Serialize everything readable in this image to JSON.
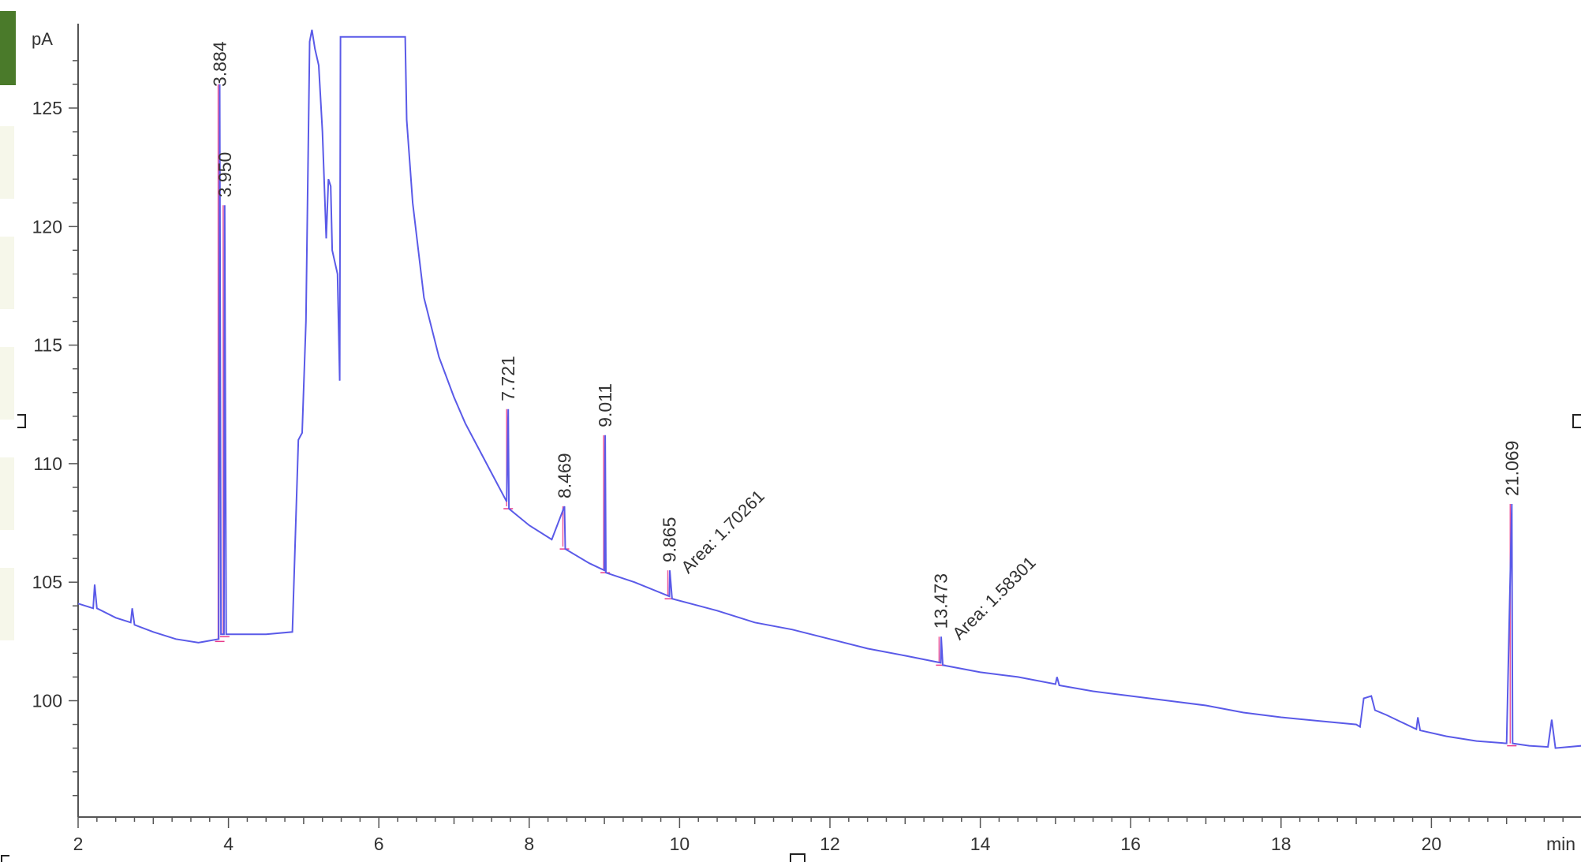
{
  "chart_data": {
    "type": "line",
    "xlabel": "min",
    "ylabel": "pA",
    "xlim": [
      2,
      22
    ],
    "ylim": [
      95,
      127.5
    ],
    "x_ticks": [
      2,
      4,
      6,
      8,
      10,
      12,
      14,
      16,
      18,
      20
    ],
    "y_ticks": [
      100,
      105,
      110,
      115,
      120,
      125
    ],
    "series_color": "#5a5ae8",
    "integration_color": "#e83a8a",
    "series": [
      {
        "points": [
          [
            2.0,
            104.1
          ],
          [
            2.2,
            103.9
          ],
          [
            2.22,
            104.9
          ],
          [
            2.25,
            103.9
          ],
          [
            2.5,
            103.5
          ],
          [
            2.7,
            103.3
          ],
          [
            2.72,
            103.9
          ],
          [
            2.75,
            103.2
          ],
          [
            3.0,
            102.9
          ],
          [
            3.3,
            102.6
          ],
          [
            3.6,
            102.45
          ],
          [
            3.87,
            102.6
          ],
          [
            3.884,
            126.0
          ],
          [
            3.9,
            102.8
          ],
          [
            3.94,
            102.8
          ],
          [
            3.95,
            120.9
          ],
          [
            3.97,
            102.8
          ],
          [
            4.2,
            102.8
          ],
          [
            4.5,
            102.8
          ],
          [
            4.85,
            102.9
          ],
          [
            4.93,
            111.0
          ],
          [
            4.98,
            111.3
          ],
          [
            5.03,
            116.0
          ],
          [
            5.08,
            127.8
          ],
          [
            5.11,
            128.3
          ],
          [
            5.15,
            127.5
          ],
          [
            5.2,
            126.8
          ],
          [
            5.25,
            124.0
          ],
          [
            5.3,
            119.5
          ],
          [
            5.33,
            122.0
          ],
          [
            5.36,
            121.7
          ],
          [
            5.38,
            119.0
          ],
          [
            5.45,
            118.0
          ],
          [
            5.48,
            113.5
          ],
          [
            5.49,
            128.0
          ],
          [
            6.35,
            128.0
          ],
          [
            6.37,
            124.5
          ],
          [
            6.45,
            121.0
          ],
          [
            6.6,
            117.0
          ],
          [
            6.8,
            114.5
          ],
          [
            7.0,
            112.8
          ],
          [
            7.15,
            111.7
          ],
          [
            7.3,
            110.8
          ],
          [
            7.5,
            109.6
          ],
          [
            7.7,
            108.4
          ],
          [
            7.721,
            112.3
          ],
          [
            7.73,
            108.1
          ],
          [
            8.0,
            107.4
          ],
          [
            8.3,
            106.8
          ],
          [
            8.469,
            108.2
          ],
          [
            8.48,
            106.4
          ],
          [
            8.8,
            105.8
          ],
          [
            9.0,
            105.5
          ],
          [
            9.011,
            111.2
          ],
          [
            9.02,
            105.4
          ],
          [
            9.4,
            105.0
          ],
          [
            9.865,
            104.4
          ],
          [
            9.87,
            105.5
          ],
          [
            9.9,
            104.3
          ],
          [
            10.5,
            103.8
          ],
          [
            11.0,
            103.3
          ],
          [
            11.5,
            103.0
          ],
          [
            12.0,
            102.6
          ],
          [
            12.5,
            102.2
          ],
          [
            13.0,
            101.9
          ],
          [
            13.473,
            101.6
          ],
          [
            13.48,
            102.7
          ],
          [
            13.5,
            101.5
          ],
          [
            14.0,
            101.2
          ],
          [
            14.5,
            101.0
          ],
          [
            15.0,
            100.7
          ],
          [
            15.02,
            101.0
          ],
          [
            15.05,
            100.65
          ],
          [
            15.5,
            100.4
          ],
          [
            16.0,
            100.2
          ],
          [
            16.5,
            100.0
          ],
          [
            17.0,
            99.8
          ],
          [
            17.5,
            99.5
          ],
          [
            18.0,
            99.3
          ],
          [
            18.5,
            99.15
          ],
          [
            19.0,
            99.0
          ],
          [
            19.05,
            98.9
          ],
          [
            19.1,
            100.1
          ],
          [
            19.2,
            100.2
          ],
          [
            19.25,
            99.6
          ],
          [
            19.4,
            99.4
          ],
          [
            19.6,
            99.1
          ],
          [
            19.8,
            98.8
          ],
          [
            19.82,
            99.3
          ],
          [
            19.85,
            98.75
          ],
          [
            20.2,
            98.5
          ],
          [
            20.6,
            98.3
          ],
          [
            21.0,
            98.2
          ],
          [
            21.069,
            108.3
          ],
          [
            21.08,
            98.2
          ],
          [
            21.3,
            98.1
          ],
          [
            21.55,
            98.05
          ],
          [
            21.6,
            99.2
          ],
          [
            21.65,
            98.0
          ],
          [
            22.0,
            98.1
          ]
        ]
      }
    ],
    "peaks": [
      {
        "label": "3.884",
        "rt": 3.884,
        "apex": 126.0,
        "base": 102.6
      },
      {
        "label": "3.950",
        "rt": 3.95,
        "apex": 120.9,
        "base": 102.8
      },
      {
        "label": "7.721",
        "rt": 7.721,
        "apex": 112.3,
        "base": 108.2
      },
      {
        "label": "8.469",
        "rt": 8.469,
        "apex": 108.2,
        "base": 106.5
      },
      {
        "label": "9.011",
        "rt": 9.011,
        "apex": 111.2,
        "base": 105.5
      },
      {
        "label": "9.865",
        "rt": 9.865,
        "apex": 105.5,
        "base": 104.4,
        "area": "Area: 1.70261"
      },
      {
        "label": "13.473",
        "rt": 13.473,
        "apex": 102.7,
        "base": 101.6,
        "area": "Area: 1.58301"
      },
      {
        "label": "21.069",
        "rt": 21.069,
        "apex": 108.3,
        "base": 98.2
      }
    ]
  }
}
